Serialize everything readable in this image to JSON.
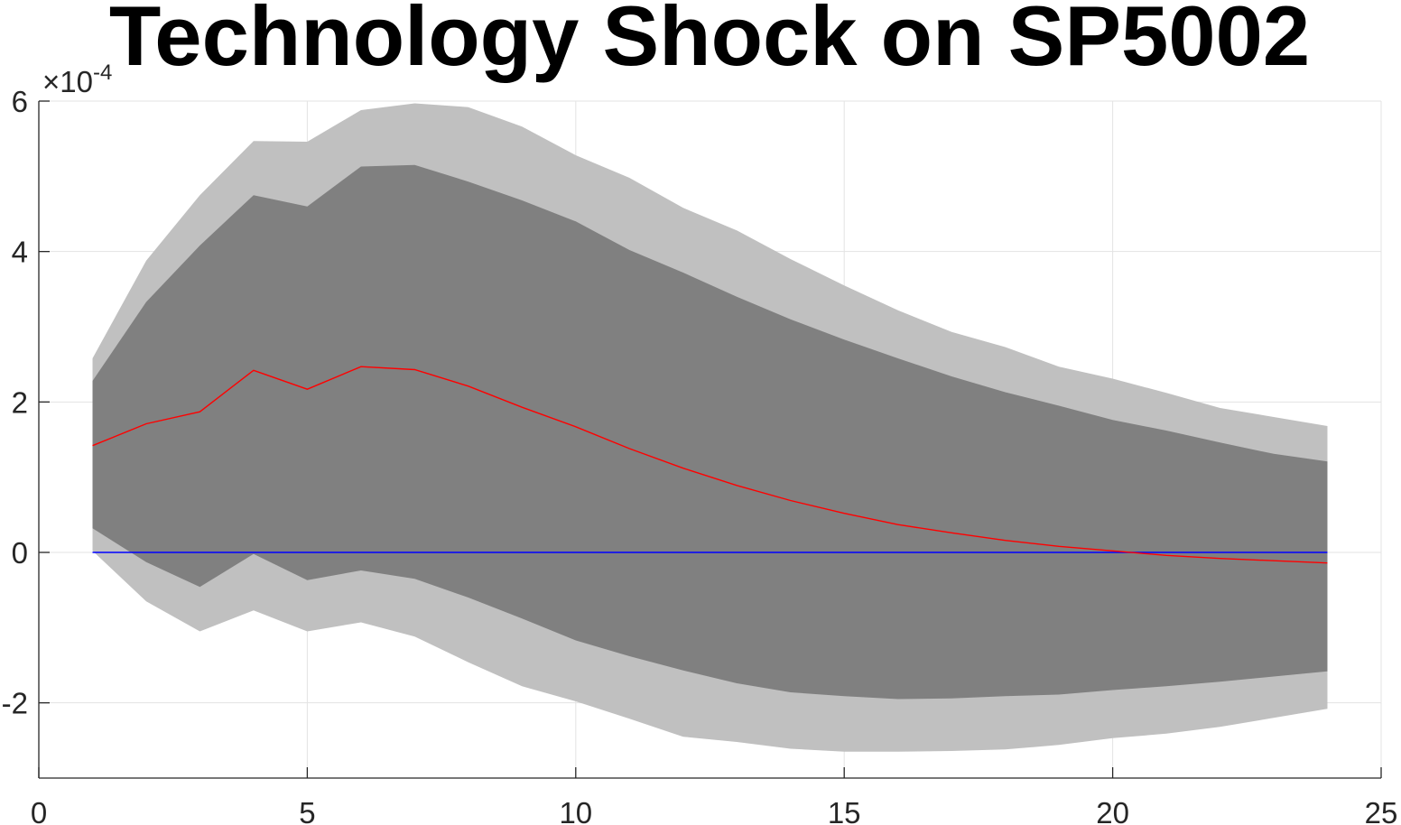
{
  "chart_data": {
    "type": "area",
    "title": "Technology Shock on SP5002",
    "xlabel": "",
    "ylabel": "",
    "y_exponent_label": "×10",
    "y_exponent_power": "-4",
    "xlim": [
      0,
      25
    ],
    "ylim": [
      -3.0,
      6.0
    ],
    "x_ticks": [
      0,
      5,
      10,
      15,
      20,
      25
    ],
    "x_tick_labels": [
      "0",
      "5",
      "10",
      "15",
      "20",
      "25"
    ],
    "y_ticks": [
      -2,
      0,
      2,
      4,
      6
    ],
    "y_tick_labels": [
      "-2",
      "0",
      "2",
      "4",
      "6"
    ],
    "grid": true,
    "x": [
      1,
      2,
      3,
      4,
      5,
      6,
      7,
      8,
      9,
      10,
      11,
      12,
      13,
      14,
      15,
      16,
      17,
      18,
      19,
      20,
      21,
      22,
      23,
      24
    ],
    "series": [
      {
        "role": "outer-band-upper",
        "color": "#c0c0c0",
        "values": [
          2.58,
          3.88,
          4.75,
          5.47,
          5.46,
          5.88,
          5.97,
          5.92,
          5.66,
          5.28,
          4.98,
          4.58,
          4.28,
          3.9,
          3.55,
          3.22,
          2.93,
          2.73,
          2.47,
          2.31,
          2.12,
          1.92,
          1.8,
          1.68
        ]
      },
      {
        "role": "outer-band-lower",
        "color": "#c0c0c0",
        "values": [
          0.02,
          -0.65,
          -1.05,
          -0.77,
          -1.05,
          -0.93,
          -1.12,
          -1.46,
          -1.78,
          -1.98,
          -2.21,
          -2.45,
          -2.52,
          -2.61,
          -2.65,
          -2.65,
          -2.64,
          -2.62,
          -2.56,
          -2.47,
          -2.41,
          -2.32,
          -2.2,
          -2.08
        ]
      },
      {
        "role": "inner-band-upper",
        "color": "#808080",
        "values": [
          2.28,
          3.33,
          4.08,
          4.75,
          4.6,
          5.13,
          5.15,
          4.93,
          4.68,
          4.4,
          4.02,
          3.72,
          3.4,
          3.1,
          2.83,
          2.58,
          2.34,
          2.13,
          1.95,
          1.76,
          1.62,
          1.46,
          1.31,
          1.21
        ]
      },
      {
        "role": "inner-band-lower",
        "color": "#808080",
        "values": [
          0.32,
          -0.13,
          -0.46,
          -0.02,
          -0.37,
          -0.24,
          -0.35,
          -0.6,
          -0.88,
          -1.17,
          -1.38,
          -1.57,
          -1.74,
          -1.86,
          -1.91,
          -1.95,
          -1.94,
          -1.91,
          -1.89,
          -1.83,
          -1.78,
          -1.72,
          -1.65,
          -1.58
        ]
      },
      {
        "role": "median",
        "color": "#ff0000",
        "values": [
          1.42,
          1.71,
          1.87,
          2.42,
          2.17,
          2.47,
          2.43,
          2.21,
          1.93,
          1.67,
          1.38,
          1.12,
          0.89,
          0.69,
          0.52,
          0.37,
          0.26,
          0.16,
          0.08,
          0.02,
          -0.04,
          -0.08,
          -0.11,
          -0.14
        ]
      },
      {
        "role": "zero-line",
        "color": "#0000ff",
        "values": [
          0,
          0,
          0,
          0,
          0,
          0,
          0,
          0,
          0,
          0,
          0,
          0,
          0,
          0,
          0,
          0,
          0,
          0,
          0,
          0,
          0,
          0,
          0,
          0
        ]
      }
    ]
  }
}
